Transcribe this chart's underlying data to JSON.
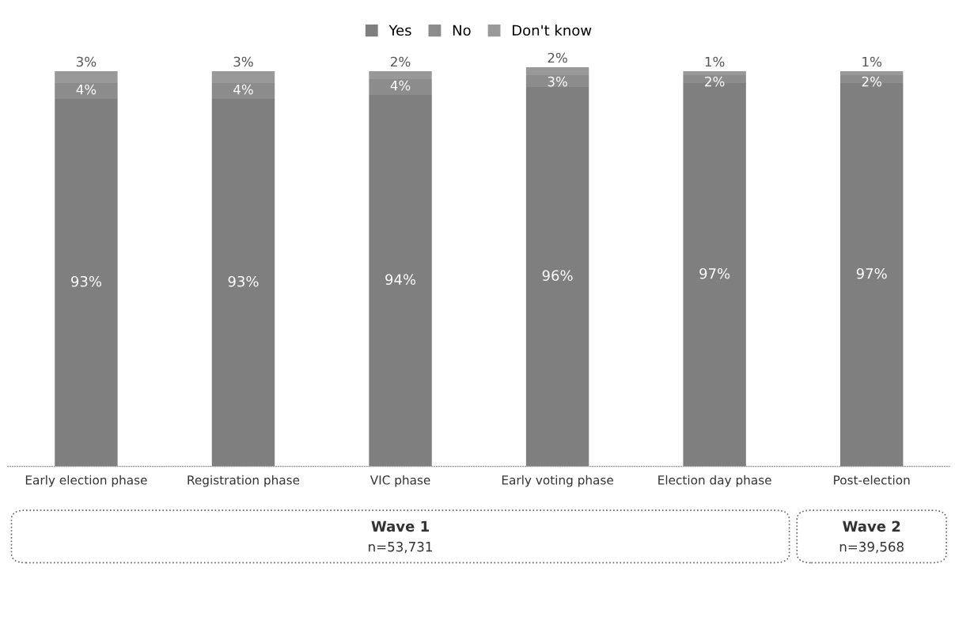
{
  "chart_data": {
    "type": "bar",
    "stacked": true,
    "legend": "top",
    "grid": false,
    "ylim": [
      0,
      101
    ],
    "categories": [
      "Early election phase",
      "Registration phase",
      "VIC phase",
      "Early voting phase",
      "Election day phase",
      "Post-election"
    ],
    "series": [
      {
        "name": "Yes",
        "color": "#7f7f7f",
        "values": [
          93,
          93,
          94,
          96,
          97,
          97
        ],
        "value_labels": [
          "93%",
          "93%",
          "94%",
          "96%",
          "97%",
          "97%"
        ]
      },
      {
        "name": "No",
        "color": "#8c8c8c",
        "values": [
          4,
          4,
          4,
          3,
          2,
          2
        ],
        "value_labels": [
          "4%",
          "4%",
          "4%",
          "3%",
          "2%",
          "2%"
        ]
      },
      {
        "name": "Don't know",
        "color": "#999999",
        "values": [
          3,
          3,
          2,
          2,
          1,
          1
        ],
        "value_labels": [
          "3%",
          "3%",
          "2%",
          "2%",
          "1%",
          "1%"
        ]
      }
    ],
    "annotations": [
      "Wave 1",
      "n=53,731",
      "Wave 2",
      "n=39,568"
    ]
  }
}
